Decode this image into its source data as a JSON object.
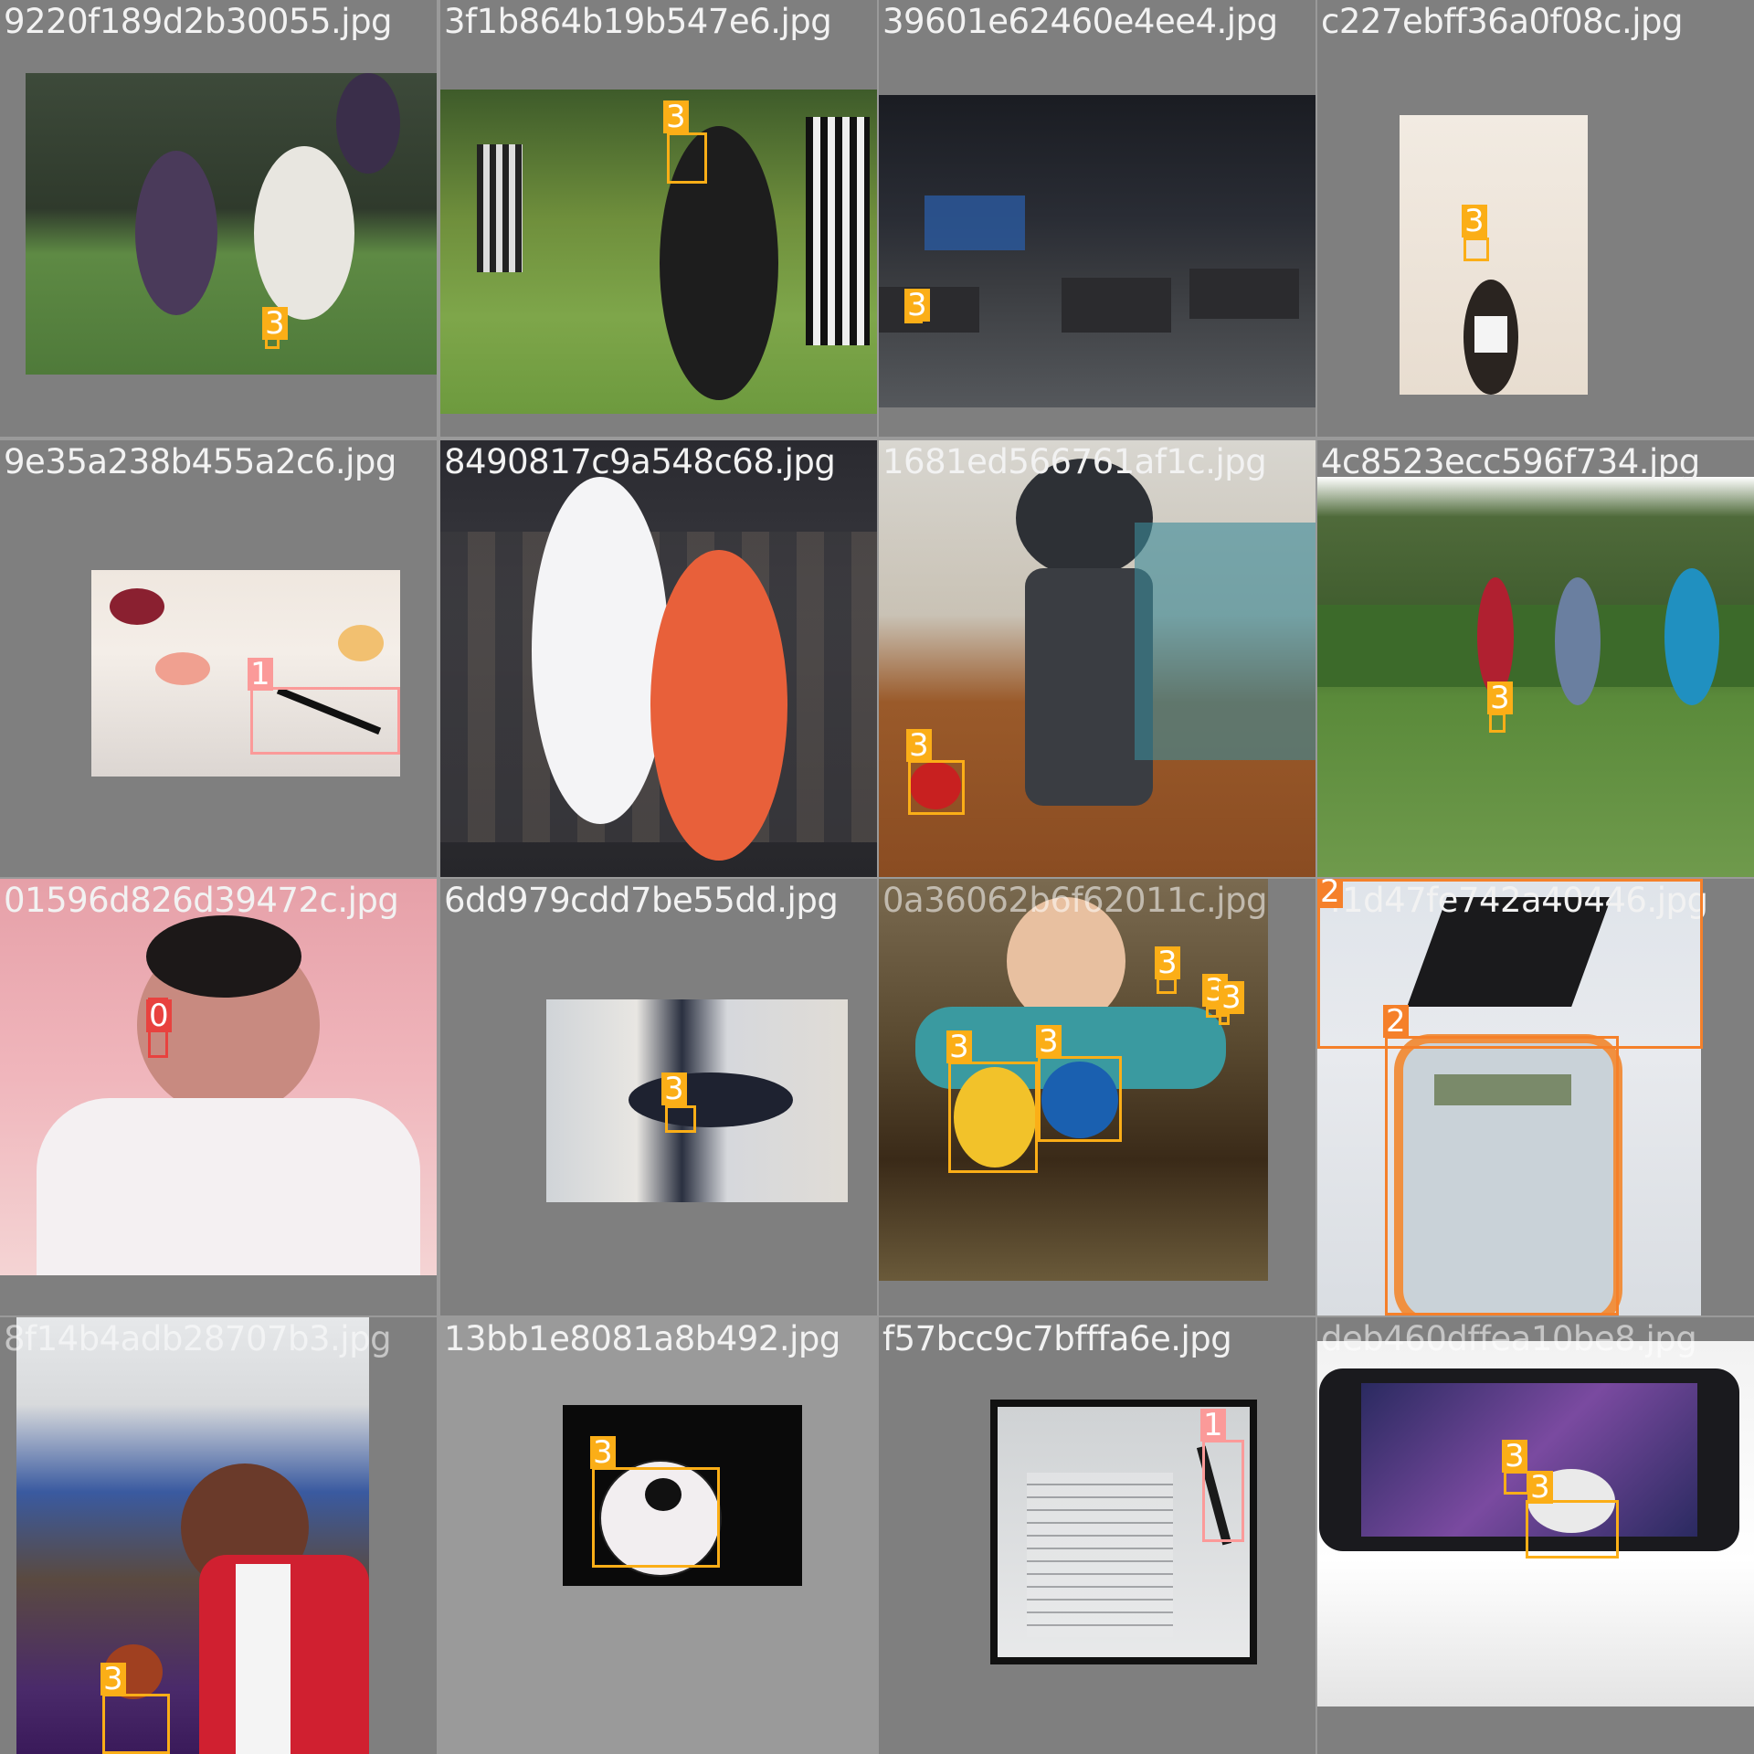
{
  "colors": {
    "class_0": "#e8423f",
    "class_1": "#fb9a99",
    "class_2": "#f5802a",
    "class_3": "#fbae17"
  },
  "tiles": [
    {
      "filename": "9220f189d2b30055.jpg",
      "labels": [
        "3"
      ]
    },
    {
      "filename": "3f1b864b19b547e6.jpg",
      "labels": [
        "3"
      ]
    },
    {
      "filename": "39601e62460e4ee4.jpg",
      "labels": [
        "3"
      ]
    },
    {
      "filename": "c227ebff36a0f08c.jpg",
      "labels": [
        "3"
      ]
    },
    {
      "filename": "9e35a238b455a2c6.jpg",
      "labels": [
        "1"
      ]
    },
    {
      "filename": "8490817c9a548c68.jpg",
      "labels": []
    },
    {
      "filename": "1681ed566761af1c.jpg",
      "labels": [
        "3",
        "3"
      ]
    },
    {
      "filename": "4c8523ecc596f734.jpg",
      "labels": [
        "3"
      ]
    },
    {
      "filename": "01596d826d39472c.jpg",
      "labels": [
        "0"
      ]
    },
    {
      "filename": "6dd979cdd7be55dd.jpg",
      "labels": [
        "3"
      ]
    },
    {
      "filename": "0a36062b6f62011c.jpg",
      "labels": [
        "3",
        "3",
        "3",
        "3",
        "3"
      ]
    },
    {
      "filename": "41d47fe742a40446.jpg",
      "labels": [
        "2",
        "2"
      ]
    },
    {
      "filename": "8f14b4adb28707b3.jpg",
      "labels": [
        "3"
      ]
    },
    {
      "filename": "13bb1e8081a8b492.jpg",
      "labels": [
        "3"
      ]
    },
    {
      "filename": "f57bcc9c7bfffa6e.jpg",
      "labels": [
        "1"
      ]
    },
    {
      "filename": "deb460dffea10be8.jpg",
      "labels": [
        "3",
        "3"
      ]
    }
  ]
}
